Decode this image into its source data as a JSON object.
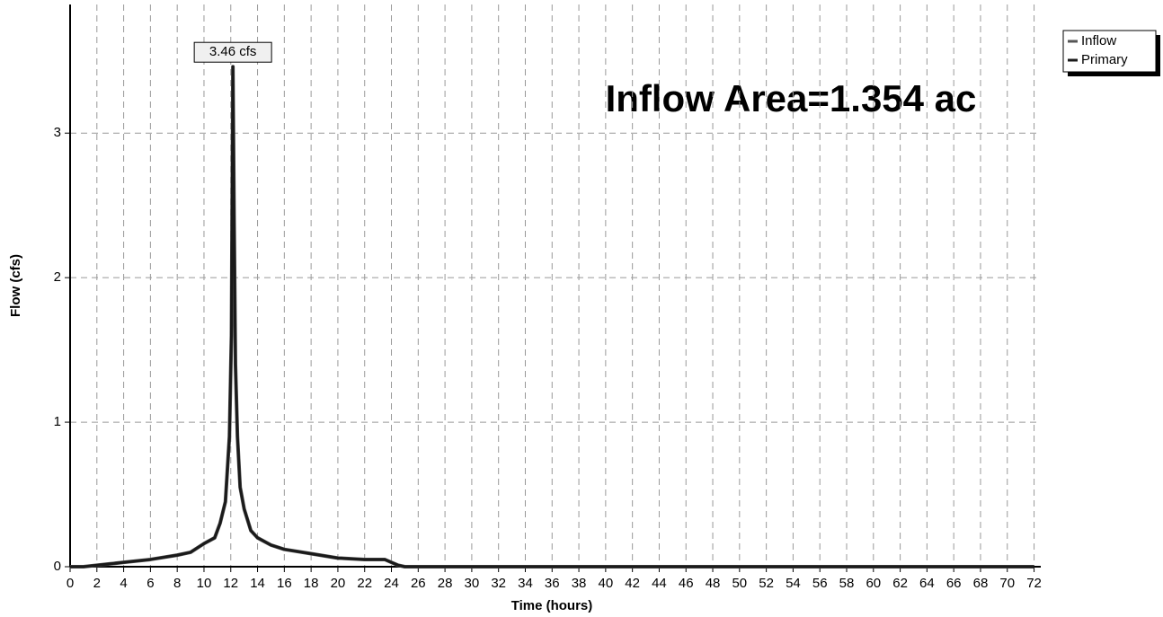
{
  "chart_data": {
    "type": "line",
    "annotation": "Inflow Area=1.354 ac",
    "peak_label": "3.46 cfs",
    "xlabel": "Time  (hours)",
    "ylabel": "Flow  (cfs)",
    "x": [
      0,
      1,
      2,
      3,
      4,
      6,
      8,
      9,
      10,
      10.8,
      11.2,
      11.6,
      11.9,
      12.05,
      12.16,
      12.25,
      12.35,
      12.5,
      12.7,
      13.0,
      13.5,
      14,
      15,
      16,
      18,
      20,
      22,
      23.5,
      24,
      24.5,
      25,
      72
    ],
    "series": [
      {
        "name": "Inflow",
        "color": "#555555",
        "values": [
          0,
          0,
          0.01,
          0.02,
          0.03,
          0.05,
          0.08,
          0.1,
          0.16,
          0.2,
          0.3,
          0.45,
          0.9,
          1.6,
          3.46,
          2.4,
          1.4,
          0.9,
          0.55,
          0.4,
          0.25,
          0.2,
          0.15,
          0.12,
          0.09,
          0.06,
          0.05,
          0.05,
          0.03,
          0.01,
          0,
          0
        ]
      },
      {
        "name": "Primary",
        "color": "#1a1a1a",
        "values": [
          0,
          0,
          0.01,
          0.02,
          0.03,
          0.05,
          0.08,
          0.1,
          0.16,
          0.2,
          0.3,
          0.45,
          0.9,
          1.6,
          3.46,
          2.4,
          1.4,
          0.9,
          0.55,
          0.4,
          0.25,
          0.2,
          0.15,
          0.12,
          0.09,
          0.06,
          0.05,
          0.05,
          0.03,
          0.01,
          0,
          0
        ]
      }
    ],
    "xlim": [
      0,
      72.5
    ],
    "xticks": [
      0,
      2,
      4,
      6,
      8,
      10,
      12,
      14,
      16,
      18,
      20,
      22,
      24,
      26,
      28,
      30,
      32,
      34,
      36,
      38,
      40,
      42,
      44,
      46,
      48,
      50,
      52,
      54,
      56,
      58,
      60,
      62,
      64,
      66,
      68,
      70,
      72
    ],
    "ylim": [
      0,
      3.89
    ],
    "yticks": [
      0,
      1,
      2,
      3
    ],
    "grid": true,
    "legend": "top-right"
  }
}
